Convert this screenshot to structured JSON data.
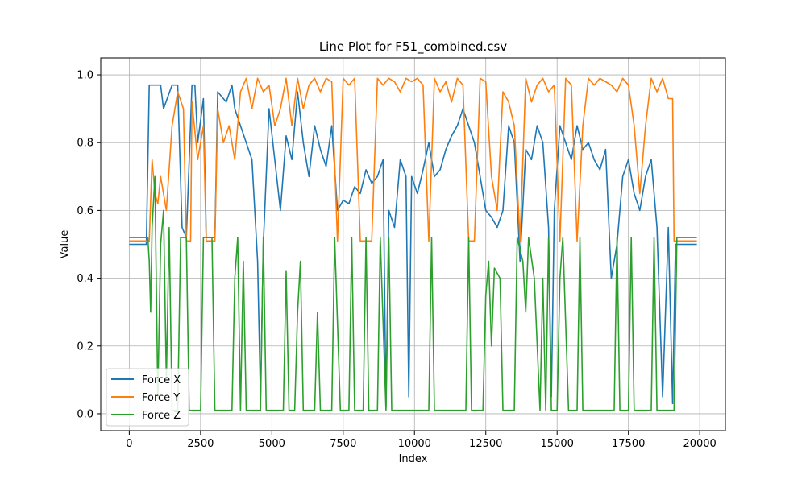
{
  "chart_data": {
    "type": "line",
    "title": "Line Plot for F51_combined.csv",
    "xlabel": "Index",
    "ylabel": "Value",
    "xlim": [
      -1000,
      20900
    ],
    "ylim": [
      -0.05,
      1.05
    ],
    "xticks": [
      0,
      2500,
      5000,
      7500,
      10000,
      12500,
      15000,
      17500,
      20000
    ],
    "yticks": [
      0.0,
      0.2,
      0.4,
      0.6,
      0.8,
      1.0
    ],
    "xtick_labels": [
      "0",
      "2500",
      "5000",
      "7500",
      "10000",
      "12500",
      "15000",
      "17500",
      "20000"
    ],
    "ytick_labels": [
      "0.0",
      "0.2",
      "0.4",
      "0.6",
      "0.8",
      "1.0"
    ],
    "grid": true,
    "legend_position": "lower-left",
    "series": [
      {
        "name": "Force X",
        "color": "#1f77b4",
        "points": [
          [
            0,
            0.5
          ],
          [
            600,
            0.5
          ],
          [
            700,
            0.97
          ],
          [
            1100,
            0.97
          ],
          [
            1200,
            0.9
          ],
          [
            1500,
            0.97
          ],
          [
            1700,
            0.97
          ],
          [
            1850,
            0.55
          ],
          [
            2000,
            0.52
          ],
          [
            2200,
            0.97
          ],
          [
            2300,
            0.97
          ],
          [
            2400,
            0.8
          ],
          [
            2600,
            0.93
          ],
          [
            2700,
            0.52
          ],
          [
            3000,
            0.52
          ],
          [
            3100,
            0.95
          ],
          [
            3400,
            0.92
          ],
          [
            3600,
            0.97
          ],
          [
            3700,
            0.9
          ],
          [
            3900,
            0.85
          ],
          [
            4100,
            0.8
          ],
          [
            4300,
            0.75
          ],
          [
            4500,
            0.45
          ],
          [
            4600,
            0.05
          ],
          [
            4700,
            0.5
          ],
          [
            4900,
            0.9
          ],
          [
            5100,
            0.75
          ],
          [
            5300,
            0.6
          ],
          [
            5500,
            0.82
          ],
          [
            5700,
            0.75
          ],
          [
            5900,
            0.95
          ],
          [
            6100,
            0.8
          ],
          [
            6300,
            0.7
          ],
          [
            6500,
            0.85
          ],
          [
            6700,
            0.78
          ],
          [
            6900,
            0.73
          ],
          [
            7100,
            0.85
          ],
          [
            7300,
            0.6
          ],
          [
            7500,
            0.63
          ],
          [
            7700,
            0.62
          ],
          [
            7900,
            0.67
          ],
          [
            8100,
            0.65
          ],
          [
            8300,
            0.72
          ],
          [
            8500,
            0.68
          ],
          [
            8700,
            0.7
          ],
          [
            8900,
            0.75
          ],
          [
            9000,
            0.02
          ],
          [
            9100,
            0.6
          ],
          [
            9300,
            0.55
          ],
          [
            9500,
            0.75
          ],
          [
            9700,
            0.7
          ],
          [
            9800,
            0.05
          ],
          [
            9900,
            0.7
          ],
          [
            10100,
            0.65
          ],
          [
            10300,
            0.72
          ],
          [
            10500,
            0.8
          ],
          [
            10700,
            0.7
          ],
          [
            10900,
            0.72
          ],
          [
            11100,
            0.78
          ],
          [
            11300,
            0.82
          ],
          [
            11500,
            0.85
          ],
          [
            11700,
            0.9
          ],
          [
            11900,
            0.85
          ],
          [
            12100,
            0.8
          ],
          [
            12300,
            0.7
          ],
          [
            12500,
            0.6
          ],
          [
            12700,
            0.58
          ],
          [
            12900,
            0.55
          ],
          [
            13100,
            0.6
          ],
          [
            13300,
            0.85
          ],
          [
            13500,
            0.8
          ],
          [
            13700,
            0.45
          ],
          [
            13900,
            0.78
          ],
          [
            14100,
            0.75
          ],
          [
            14300,
            0.85
          ],
          [
            14500,
            0.8
          ],
          [
            14700,
            0.55
          ],
          [
            14800,
            0.05
          ],
          [
            14900,
            0.6
          ],
          [
            15100,
            0.85
          ],
          [
            15300,
            0.8
          ],
          [
            15500,
            0.75
          ],
          [
            15700,
            0.85
          ],
          [
            15900,
            0.78
          ],
          [
            16100,
            0.8
          ],
          [
            16300,
            0.75
          ],
          [
            16500,
            0.72
          ],
          [
            16700,
            0.78
          ],
          [
            16900,
            0.4
          ],
          [
            17100,
            0.5
          ],
          [
            17300,
            0.7
          ],
          [
            17500,
            0.75
          ],
          [
            17700,
            0.65
          ],
          [
            17900,
            0.6
          ],
          [
            18100,
            0.7
          ],
          [
            18300,
            0.75
          ],
          [
            18500,
            0.55
          ],
          [
            18700,
            0.05
          ],
          [
            18900,
            0.55
          ],
          [
            19050,
            0.03
          ],
          [
            19150,
            0.5
          ],
          [
            19900,
            0.5
          ]
        ]
      },
      {
        "name": "Force Y",
        "color": "#ff7f0e",
        "points": [
          [
            0,
            0.51
          ],
          [
            700,
            0.51
          ],
          [
            800,
            0.75
          ],
          [
            900,
            0.65
          ],
          [
            1000,
            0.62
          ],
          [
            1100,
            0.7
          ],
          [
            1300,
            0.6
          ],
          [
            1500,
            0.85
          ],
          [
            1700,
            0.95
          ],
          [
            1900,
            0.9
          ],
          [
            2000,
            0.51
          ],
          [
            2150,
            0.51
          ],
          [
            2200,
            0.92
          ],
          [
            2400,
            0.75
          ],
          [
            2600,
            0.85
          ],
          [
            2700,
            0.51
          ],
          [
            3000,
            0.51
          ],
          [
            3100,
            0.9
          ],
          [
            3300,
            0.8
          ],
          [
            3500,
            0.85
          ],
          [
            3700,
            0.75
          ],
          [
            3900,
            0.95
          ],
          [
            4100,
            0.99
          ],
          [
            4300,
            0.9
          ],
          [
            4500,
            0.99
          ],
          [
            4700,
            0.95
          ],
          [
            4900,
            0.97
          ],
          [
            5100,
            0.85
          ],
          [
            5300,
            0.9
          ],
          [
            5500,
            0.99
          ],
          [
            5700,
            0.85
          ],
          [
            5900,
            0.99
          ],
          [
            6100,
            0.9
          ],
          [
            6300,
            0.97
          ],
          [
            6500,
            0.99
          ],
          [
            6700,
            0.95
          ],
          [
            6900,
            0.99
          ],
          [
            7100,
            0.98
          ],
          [
            7300,
            0.51
          ],
          [
            7500,
            0.99
          ],
          [
            7700,
            0.97
          ],
          [
            7900,
            0.99
          ],
          [
            8100,
            0.51
          ],
          [
            8300,
            0.51
          ],
          [
            8500,
            0.51
          ],
          [
            8700,
            0.99
          ],
          [
            8900,
            0.97
          ],
          [
            9100,
            0.99
          ],
          [
            9300,
            0.98
          ],
          [
            9500,
            0.95
          ],
          [
            9700,
            0.99
          ],
          [
            9900,
            0.98
          ],
          [
            10100,
            0.99
          ],
          [
            10300,
            0.97
          ],
          [
            10500,
            0.51
          ],
          [
            10700,
            0.99
          ],
          [
            10900,
            0.95
          ],
          [
            11100,
            0.98
          ],
          [
            11300,
            0.92
          ],
          [
            11500,
            0.99
          ],
          [
            11700,
            0.97
          ],
          [
            11900,
            0.51
          ],
          [
            12100,
            0.51
          ],
          [
            12300,
            0.99
          ],
          [
            12500,
            0.98
          ],
          [
            12700,
            0.7
          ],
          [
            12900,
            0.6
          ],
          [
            13100,
            0.95
          ],
          [
            13300,
            0.92
          ],
          [
            13500,
            0.85
          ],
          [
            13700,
            0.51
          ],
          [
            13900,
            0.99
          ],
          [
            14100,
            0.92
          ],
          [
            14300,
            0.97
          ],
          [
            14500,
            0.99
          ],
          [
            14700,
            0.95
          ],
          [
            14900,
            0.97
          ],
          [
            15100,
            0.51
          ],
          [
            15300,
            0.99
          ],
          [
            15500,
            0.97
          ],
          [
            15700,
            0.51
          ],
          [
            15900,
            0.85
          ],
          [
            16100,
            0.99
          ],
          [
            16300,
            0.97
          ],
          [
            16500,
            0.99
          ],
          [
            16700,
            0.98
          ],
          [
            16900,
            0.97
          ],
          [
            17100,
            0.95
          ],
          [
            17300,
            0.99
          ],
          [
            17500,
            0.97
          ],
          [
            17700,
            0.85
          ],
          [
            17900,
            0.65
          ],
          [
            18100,
            0.85
          ],
          [
            18300,
            0.99
          ],
          [
            18500,
            0.95
          ],
          [
            18700,
            0.99
          ],
          [
            18900,
            0.93
          ],
          [
            19050,
            0.93
          ],
          [
            19100,
            0.51
          ],
          [
            19900,
            0.51
          ]
        ]
      },
      {
        "name": "Force Z",
        "color": "#2ca02c",
        "points": [
          [
            0,
            0.52
          ],
          [
            650,
            0.52
          ],
          [
            700,
            0.45
          ],
          [
            750,
            0.3
          ],
          [
            800,
            0.55
          ],
          [
            900,
            0.7
          ],
          [
            1000,
            0.05
          ],
          [
            1100,
            0.5
          ],
          [
            1200,
            0.6
          ],
          [
            1300,
            0.1
          ],
          [
            1400,
            0.55
          ],
          [
            1500,
            0.01
          ],
          [
            1700,
            0.01
          ],
          [
            1800,
            0.52
          ],
          [
            2000,
            0.52
          ],
          [
            2100,
            0.01
          ],
          [
            2500,
            0.01
          ],
          [
            2600,
            0.52
          ],
          [
            2900,
            0.52
          ],
          [
            3000,
            0.01
          ],
          [
            3600,
            0.01
          ],
          [
            3700,
            0.4
          ],
          [
            3800,
            0.52
          ],
          [
            3900,
            0.01
          ],
          [
            4000,
            0.45
          ],
          [
            4100,
            0.01
          ],
          [
            4600,
            0.01
          ],
          [
            4700,
            0.52
          ],
          [
            4800,
            0.01
          ],
          [
            5400,
            0.01
          ],
          [
            5500,
            0.42
          ],
          [
            5600,
            0.01
          ],
          [
            5800,
            0.01
          ],
          [
            5900,
            0.3
          ],
          [
            6000,
            0.45
          ],
          [
            6100,
            0.01
          ],
          [
            6500,
            0.01
          ],
          [
            6600,
            0.3
          ],
          [
            6700,
            0.01
          ],
          [
            7100,
            0.01
          ],
          [
            7200,
            0.52
          ],
          [
            7400,
            0.01
          ],
          [
            7700,
            0.01
          ],
          [
            7800,
            0.52
          ],
          [
            7900,
            0.01
          ],
          [
            8200,
            0.01
          ],
          [
            8300,
            0.52
          ],
          [
            8400,
            0.01
          ],
          [
            8700,
            0.01
          ],
          [
            8800,
            0.52
          ],
          [
            9000,
            0.01
          ],
          [
            9100,
            0.52
          ],
          [
            9200,
            0.01
          ],
          [
            10500,
            0.01
          ],
          [
            10600,
            0.52
          ],
          [
            10700,
            0.01
          ],
          [
            11800,
            0.01
          ],
          [
            11900,
            0.52
          ],
          [
            12000,
            0.01
          ],
          [
            12400,
            0.01
          ],
          [
            12500,
            0.35
          ],
          [
            12600,
            0.45
          ],
          [
            12700,
            0.2
          ],
          [
            12800,
            0.43
          ],
          [
            13000,
            0.4
          ],
          [
            13100,
            0.01
          ],
          [
            13500,
            0.01
          ],
          [
            13600,
            0.52
          ],
          [
            13800,
            0.45
          ],
          [
            13900,
            0.3
          ],
          [
            14000,
            0.52
          ],
          [
            14200,
            0.4
          ],
          [
            14400,
            0.01
          ],
          [
            14500,
            0.4
          ],
          [
            14600,
            0.01
          ],
          [
            14700,
            0.52
          ],
          [
            14800,
            0.01
          ],
          [
            15000,
            0.01
          ],
          [
            15100,
            0.4
          ],
          [
            15200,
            0.52
          ],
          [
            15400,
            0.01
          ],
          [
            15700,
            0.01
          ],
          [
            15800,
            0.52
          ],
          [
            15900,
            0.01
          ],
          [
            17000,
            0.01
          ],
          [
            17100,
            0.52
          ],
          [
            17200,
            0.01
          ],
          [
            17500,
            0.01
          ],
          [
            17600,
            0.52
          ],
          [
            17700,
            0.01
          ],
          [
            18300,
            0.01
          ],
          [
            18400,
            0.52
          ],
          [
            18500,
            0.01
          ],
          [
            19100,
            0.01
          ],
          [
            19200,
            0.52
          ],
          [
            19900,
            0.52
          ]
        ]
      }
    ]
  }
}
